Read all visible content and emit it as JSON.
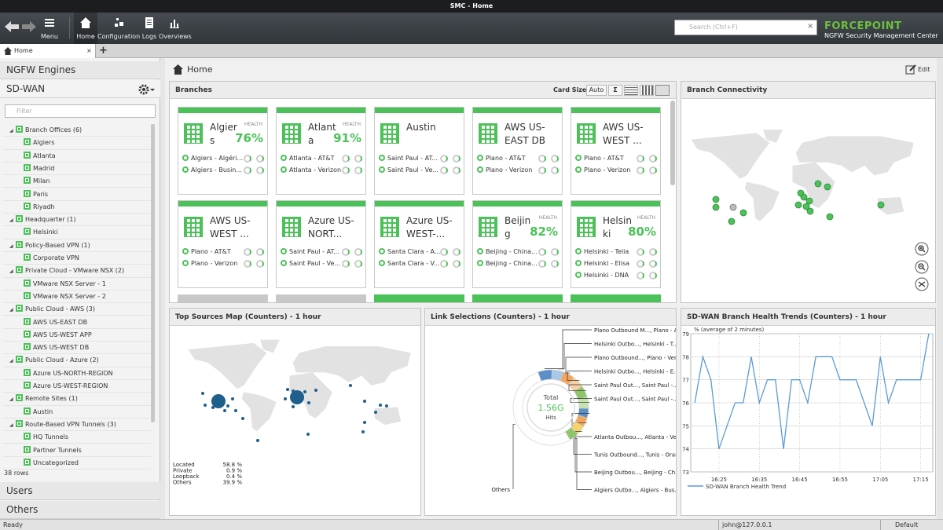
{
  "window": {
    "title": "SMC - Home"
  },
  "toolbar": {
    "menu": "Menu",
    "items": [
      "Home",
      "Configuration",
      "Logs",
      "Overviews"
    ],
    "search": "Search (Ctrl+F)",
    "brand": "FORCEPOINT",
    "product": "NGFW Security Management Center"
  },
  "tabs": {
    "items": [
      "Home"
    ],
    "add": "+"
  },
  "sidebar": {
    "engines": "NGFW Engines",
    "section": "SD-WAN",
    "filter": "Filter",
    "tree": [
      {
        "label": "Branch Offices (6)",
        "children": [
          "Algiers",
          "Atlanta",
          "Madrid",
          "Milan",
          "Paris",
          "Riyadh"
        ]
      },
      {
        "label": "Headquarter (1)",
        "children": [
          "Helsinki"
        ]
      },
      {
        "label": "Policy-Based VPN (1)",
        "children": [
          "Corporate VPN"
        ]
      },
      {
        "label": "Private Cloud - VMware NSX (2)",
        "children": [
          "VMware NSX Server - 1",
          "VMware NSX Server - 2"
        ]
      },
      {
        "label": "Public Cloud - AWS (3)",
        "children": [
          "AWS US-EAST DB",
          "AWS US-WEST APP",
          "AWS US-WEST DB"
        ]
      },
      {
        "label": "Public Cloud - Azure (2)",
        "children": [
          "Azure US-NORTH-REGION",
          "Azure US-WEST-REGION"
        ]
      },
      {
        "label": "Remote Sites (1)",
        "children": [
          "Austin"
        ]
      },
      {
        "label": "Route-Based VPN Tunnels (3)",
        "children": [
          "HQ Tunnels",
          "Partner Tunnels",
          "Uncategorized"
        ]
      }
    ],
    "row_count": "38 rows",
    "footer": [
      "Users",
      "Others"
    ]
  },
  "page": {
    "title": "Home",
    "edit": "Edit"
  },
  "branches": {
    "title": "Branches",
    "card_size_label": "Card Size:",
    "card_size_options": [
      "Auto",
      "Σ"
    ],
    "health_label": "HEALTH",
    "cards": [
      {
        "name": "Algiers",
        "health": "76%",
        "links": [
          "Algiers - Algéri...",
          "Algiers - Busin..."
        ]
      },
      {
        "name": "Atlanta",
        "health": "91%",
        "links": [
          "Atlanta - AT&T",
          "Atlanta - Verizon"
        ]
      },
      {
        "name": "Austin",
        "links": [
          "Saint Paul - AT...",
          "Saint Paul - Ve..."
        ]
      },
      {
        "name": "AWS US-EAST DB",
        "links": [
          "Plano - AT&T",
          "Plano - Verizon"
        ]
      },
      {
        "name": "AWS US-WEST ...",
        "links": [
          "Plano - AT&T",
          "Plano - Verizon"
        ]
      },
      {
        "name": "AWS US-WEST ...",
        "links": [
          "Plano - AT&T",
          "Plano - Verizon"
        ]
      },
      {
        "name": "Azure US-NORT...",
        "links": [
          "Saint Paul - AT...",
          "Saint Paul - Ve..."
        ]
      },
      {
        "name": "Azure US-WEST-...",
        "links": [
          "Santa Clara - A...",
          "Santa Clara - V..."
        ]
      },
      {
        "name": "Beijing",
        "health": "82%",
        "links": [
          "Beijing - China...",
          "Beijing - China..."
        ]
      },
      {
        "name": "Helsinki",
        "health": "80%",
        "links": [
          "Helsinki - Telia",
          "Helsinki - Elisa",
          "Helsinki - DNA"
        ]
      }
    ]
  },
  "connectivity": {
    "title": "Branch Connectivity"
  },
  "sources": {
    "title": "Top Sources Map (Counters) - 1 hour",
    "legend": [
      {
        "label": "Located",
        "value": "58.8 %"
      },
      {
        "label": "Private",
        "value": "0.9 %"
      },
      {
        "label": "Loopback",
        "value": "0.4 %"
      },
      {
        "label": "Others",
        "value": "39.9 %"
      }
    ]
  },
  "chart_data": [
    {
      "type": "pie",
      "title": "Link Selections (Counters) - 1 hour",
      "center": [
        "Total",
        "1.56G",
        "Hits"
      ],
      "categories": [
        "Plano Outbound M..., Plano - AT&T",
        "Helsinki Outbo..., Helsinki - T...",
        "Plano Outbound..., Plano - Verizon",
        "Helsinki Outbo..., Helsinki - E...",
        "Saint Paul Out..., Saint Paul -...",
        "Saint Paul Out..., Saint Paul -...",
        "Atlanta Outbou..., Atlanta - Ve...",
        "Tunis Outbound..., Tunis - Orange",
        "Beijing Outbou..., Beijing - Ch...",
        "Algiers Outbo..., Algiers - Bus...",
        "Others"
      ],
      "values": [
        6,
        5,
        5,
        5,
        5,
        5,
        4,
        4,
        4,
        4,
        53
      ],
      "colors": [
        "#5b8fc9",
        "#a9c8e8",
        "#f2a65e",
        "#f8cfa4",
        "#8fc66b",
        "#c5e3ae",
        "#5b8fc9",
        "#f2a65e",
        "#f6d36b",
        "#8fc66b",
        "#ffffff"
      ]
    },
    {
      "type": "line",
      "title": "SD-WAN Branch Health Trends (Counters) - 1 hour",
      "y_label": "% (average of 2 minutes)",
      "x": [
        "16:19",
        "16:21",
        "16:23",
        "16:25",
        "16:27",
        "16:29",
        "16:31",
        "16:33",
        "16:35",
        "16:37",
        "16:39",
        "16:41",
        "16:43",
        "16:45",
        "16:47",
        "16:49",
        "16:51",
        "16:53",
        "16:55",
        "16:57",
        "16:59",
        "17:01",
        "17:03",
        "17:05",
        "17:07",
        "17:09",
        "17:11",
        "17:13",
        "17:15",
        "17:17"
      ],
      "series": [
        {
          "name": "SD-WAN Branch Health Trend",
          "color": "#5b9bd5",
          "values": [
            76,
            78,
            77,
            74,
            75,
            76,
            76,
            78,
            76,
            77,
            77,
            74,
            77,
            77,
            76,
            78,
            78,
            78,
            77,
            77,
            77,
            76,
            75,
            78,
            76,
            77,
            77,
            77,
            77,
            79
          ]
        }
      ],
      "xlim": [
        "16:18",
        "17:18"
      ],
      "xticks": [
        "16:25",
        "16:35",
        "16:45",
        "16:55",
        "17:05",
        "17:15"
      ],
      "ylim": [
        73,
        79
      ],
      "yticks": [
        73,
        74,
        75,
        76,
        77,
        78,
        79
      ],
      "grid": true
    }
  ],
  "status": {
    "state": "Ready",
    "user": "john@127.0.0.1",
    "profile": "Default"
  }
}
